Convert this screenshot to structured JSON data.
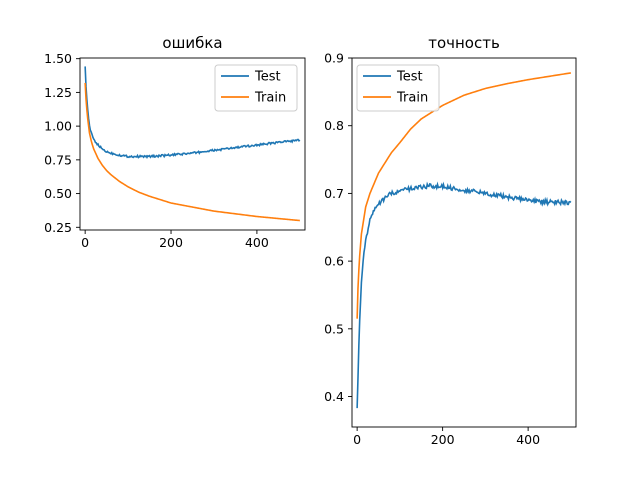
{
  "chart_data": [
    {
      "type": "line",
      "title": "ошибка",
      "xlabel": "",
      "ylabel": "",
      "xlim": [
        -12,
        512
      ],
      "ylim": [
        0.23,
        1.505
      ],
      "x_ticks": [
        0,
        200,
        400
      ],
      "x_tick_labels": [
        "0",
        "200",
        "400"
      ],
      "y_ticks": [
        0.25,
        0.5,
        0.75,
        1.0,
        1.25,
        1.5
      ],
      "y_tick_labels": [
        "0.25",
        "0.50",
        "0.75",
        "1.00",
        "1.25",
        "1.50"
      ],
      "grid": false,
      "legend": "top-right",
      "series": [
        {
          "name": "Test",
          "color": "#1f77b4",
          "x": [
            0,
            2,
            5,
            10,
            15,
            20,
            30,
            40,
            50,
            60,
            80,
            100,
            120,
            150,
            200,
            250,
            300,
            350,
            400,
            450,
            500
          ],
          "y": [
            1.45,
            1.3,
            1.15,
            1.0,
            0.94,
            0.9,
            0.86,
            0.83,
            0.81,
            0.8,
            0.785,
            0.775,
            0.775,
            0.775,
            0.785,
            0.8,
            0.82,
            0.84,
            0.86,
            0.88,
            0.895
          ]
        },
        {
          "name": "Train",
          "color": "#ff7f0e",
          "x": [
            0,
            2,
            5,
            10,
            15,
            20,
            30,
            40,
            50,
            60,
            80,
            100,
            125,
            150,
            200,
            250,
            300,
            350,
            400,
            450,
            500
          ],
          "y": [
            1.32,
            1.2,
            1.08,
            0.95,
            0.88,
            0.83,
            0.76,
            0.71,
            0.67,
            0.64,
            0.59,
            0.55,
            0.51,
            0.48,
            0.43,
            0.4,
            0.37,
            0.35,
            0.33,
            0.315,
            0.3
          ]
        }
      ]
    },
    {
      "type": "line",
      "title": "точность",
      "xlabel": "",
      "ylabel": "",
      "xlim": [
        -12,
        512
      ],
      "ylim": [
        0.355,
        0.9
      ],
      "x_ticks": [
        0,
        200,
        400
      ],
      "x_tick_labels": [
        "0",
        "200",
        "400"
      ],
      "y_ticks": [
        0.4,
        0.5,
        0.6,
        0.7,
        0.8,
        0.9
      ],
      "y_tick_labels": [
        "0.4",
        "0.5",
        "0.6",
        "0.7",
        "0.8",
        "0.9"
      ],
      "grid": false,
      "legend": "top-left",
      "series": [
        {
          "name": "Test",
          "color": "#1f77b4",
          "x": [
            0,
            2,
            5,
            10,
            15,
            20,
            30,
            40,
            50,
            60,
            80,
            100,
            125,
            150,
            175,
            200,
            250,
            300,
            350,
            400,
            450,
            500
          ],
          "y": [
            0.38,
            0.43,
            0.5,
            0.57,
            0.61,
            0.63,
            0.66,
            0.675,
            0.685,
            0.69,
            0.7,
            0.703,
            0.707,
            0.71,
            0.711,
            0.71,
            0.705,
            0.7,
            0.695,
            0.69,
            0.687,
            0.687
          ]
        },
        {
          "name": "Train",
          "color": "#ff7f0e",
          "x": [
            0,
            2,
            5,
            10,
            15,
            20,
            30,
            40,
            50,
            60,
            80,
            100,
            125,
            150,
            200,
            250,
            300,
            350,
            400,
            450,
            500
          ],
          "y": [
            0.515,
            0.56,
            0.6,
            0.64,
            0.66,
            0.68,
            0.7,
            0.715,
            0.73,
            0.74,
            0.76,
            0.775,
            0.795,
            0.81,
            0.83,
            0.845,
            0.855,
            0.862,
            0.868,
            0.873,
            0.878
          ]
        }
      ]
    }
  ]
}
